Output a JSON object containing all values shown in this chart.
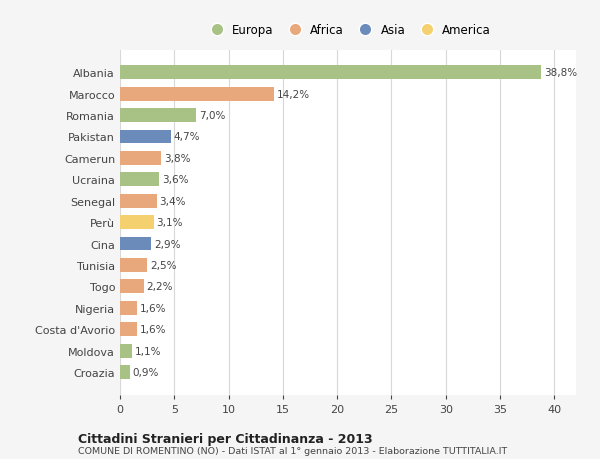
{
  "countries": [
    "Albania",
    "Marocco",
    "Romania",
    "Pakistan",
    "Camerun",
    "Ucraina",
    "Senegal",
    "Perù",
    "Cina",
    "Tunisia",
    "Togo",
    "Nigeria",
    "Costa d'Avorio",
    "Moldova",
    "Croazia"
  ],
  "values": [
    38.8,
    14.2,
    7.0,
    4.7,
    3.8,
    3.6,
    3.4,
    3.1,
    2.9,
    2.5,
    2.2,
    1.6,
    1.6,
    1.1,
    0.9
  ],
  "labels": [
    "38,8%",
    "14,2%",
    "7,0%",
    "4,7%",
    "3,8%",
    "3,6%",
    "3,4%",
    "3,1%",
    "2,9%",
    "2,5%",
    "2,2%",
    "1,6%",
    "1,6%",
    "1,1%",
    "0,9%"
  ],
  "regions": [
    "Europa",
    "Africa",
    "Europa",
    "Asia",
    "Africa",
    "Europa",
    "Africa",
    "America",
    "Asia",
    "Africa",
    "Africa",
    "Africa",
    "Africa",
    "Europa",
    "Europa"
  ],
  "region_colors": {
    "Europa": "#a8c285",
    "Africa": "#e8a87c",
    "Asia": "#6b8cba",
    "America": "#f5d06e"
  },
  "legend_order": [
    "Europa",
    "Africa",
    "Asia",
    "America"
  ],
  "xlim": [
    0,
    42
  ],
  "xticks": [
    0,
    5,
    10,
    15,
    20,
    25,
    30,
    35,
    40
  ],
  "title": "Cittadini Stranieri per Cittadinanza - 2013",
  "subtitle": "COMUNE DI ROMENTINO (NO) - Dati ISTAT al 1° gennaio 2013 - Elaborazione TUTTITALIA.IT",
  "bg_color": "#f5f5f5",
  "bar_bg_color": "#ffffff",
  "grid_color": "#d8d8d8",
  "text_color": "#444444",
  "label_fontsize": 7.5,
  "ytick_fontsize": 8.0,
  "xtick_fontsize": 8.0,
  "bar_height": 0.65
}
